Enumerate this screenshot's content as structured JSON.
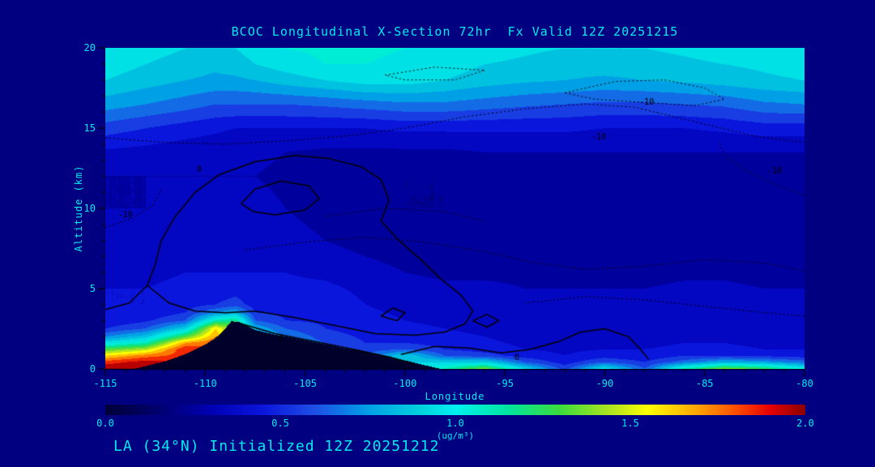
{
  "page": {
    "background": "#000080",
    "text_color": "#00ecec",
    "axis_color": "#000000"
  },
  "chart_data": {
    "type": "heatmap",
    "title": "BCOC Longitudinal X-Section 72hr  Fx Valid 12Z 20251215",
    "xlabel": "Longitude",
    "ylabel": "Altitude (km)",
    "footer": "LA (34°N) Initialized 12Z 20251212",
    "x_range": [
      -115,
      -80
    ],
    "y_range": [
      0,
      20
    ],
    "x_ticks": [
      -115,
      -110,
      -105,
      -100,
      -95,
      -90,
      -85,
      -80
    ],
    "y_ticks": [
      0,
      5,
      10,
      15,
      20
    ],
    "x_minor_step": 1,
    "y_minor_step": 1,
    "colorbar": {
      "min": 0,
      "max": 2,
      "tick_labels": [
        "0.0",
        "0.5",
        "1.0",
        "1.5",
        "2.0"
      ],
      "unit": "(ug/m³)",
      "band_step": 0.1
    },
    "colormap": [
      [
        0.0,
        "#000038"
      ],
      [
        0.15,
        "#00006e"
      ],
      [
        0.3,
        "#0000b4"
      ],
      [
        0.45,
        "#0b16dc"
      ],
      [
        0.6,
        "#1e50e6"
      ],
      [
        0.75,
        "#00a0e6"
      ],
      [
        0.9,
        "#00d2dc"
      ],
      [
        1.0,
        "#00f0f0"
      ],
      [
        1.15,
        "#00e6a0"
      ],
      [
        1.3,
        "#3cdc3c"
      ],
      [
        1.45,
        "#b4e61e"
      ],
      [
        1.55,
        "#ffff00"
      ],
      [
        1.7,
        "#ffa000"
      ],
      [
        1.8,
        "#ff5000"
      ],
      [
        1.9,
        "#e60000"
      ],
      [
        2.0,
        "#8c0000"
      ]
    ],
    "grid": {
      "lons": [
        -115,
        -113,
        -111,
        -109.5,
        -108.5,
        -107.5,
        -106,
        -104,
        -102,
        -100,
        -98,
        -96,
        -94,
        -92,
        -90,
        -88,
        -86,
        -84,
        -82,
        -80
      ],
      "alts": [
        0,
        0.4,
        0.8,
        1.2,
        1.6,
        2,
        2.5,
        3,
        3.5,
        4,
        5,
        6,
        8,
        10,
        12,
        13.5,
        15,
        16.5,
        18,
        19,
        20
      ],
      "values": [
        [
          2.0,
          2.0,
          1.9,
          1.8,
          1.3,
          0.85,
          0.7,
          0.6,
          0.6,
          0.9,
          1.1,
          1.35,
          0.9,
          0.55,
          0.95,
          0.6,
          1.1,
          1.35,
          1.25,
          1.0
        ],
        [
          1.85,
          1.95,
          1.9,
          1.8,
          1.3,
          0.85,
          0.7,
          0.6,
          0.6,
          0.9,
          0.9,
          0.9,
          0.6,
          0.45,
          0.6,
          0.5,
          0.65,
          0.8,
          0.75,
          0.65
        ],
        [
          1.6,
          1.75,
          1.85,
          1.8,
          1.3,
          0.85,
          0.7,
          0.6,
          0.6,
          0.9,
          0.6,
          0.55,
          0.45,
          0.4,
          0.45,
          0.42,
          0.5,
          0.5,
          0.48,
          0.45
        ],
        [
          1.3,
          1.45,
          1.9,
          1.8,
          1.3,
          0.85,
          0.7,
          0.6,
          0.55,
          0.6,
          0.5,
          0.45,
          0.4,
          0.38,
          0.4,
          0.4,
          0.42,
          0.42,
          0.4,
          0.4
        ],
        [
          0.95,
          1.1,
          1.7,
          1.8,
          1.3,
          0.85,
          0.7,
          0.6,
          0.5,
          0.5,
          0.45,
          0.42,
          0.38,
          0.36,
          0.38,
          0.38,
          0.4,
          0.4,
          0.38,
          0.38
        ],
        [
          0.7,
          0.85,
          1.3,
          1.7,
          1.3,
          0.85,
          0.7,
          0.55,
          0.48,
          0.45,
          0.42,
          0.4,
          0.36,
          0.35,
          0.36,
          0.36,
          0.38,
          0.38,
          0.36,
          0.36
        ],
        [
          0.5,
          0.6,
          0.9,
          1.6,
          1.3,
          0.8,
          0.6,
          0.5,
          0.45,
          0.42,
          0.4,
          0.38,
          0.35,
          0.34,
          0.35,
          0.35,
          0.36,
          0.36,
          0.35,
          0.35
        ],
        [
          0.42,
          0.48,
          0.6,
          1.1,
          1.2,
          0.6,
          0.5,
          0.48,
          0.45,
          0.4,
          0.38,
          0.36,
          0.34,
          0.33,
          0.34,
          0.34,
          0.35,
          0.35,
          0.34,
          0.34
        ],
        [
          0.4,
          0.42,
          0.5,
          0.7,
          0.8,
          0.5,
          0.48,
          0.45,
          0.42,
          0.38,
          0.36,
          0.35,
          0.33,
          0.32,
          0.33,
          0.33,
          0.34,
          0.34,
          0.33,
          0.33
        ],
        [
          0.4,
          0.4,
          0.45,
          0.5,
          0.55,
          0.45,
          0.45,
          0.45,
          0.4,
          0.36,
          0.35,
          0.34,
          0.32,
          0.31,
          0.32,
          0.32,
          0.33,
          0.33,
          0.32,
          0.32
        ],
        [
          0.4,
          0.4,
          0.42,
          0.42,
          0.45,
          0.42,
          0.42,
          0.42,
          0.38,
          0.34,
          0.32,
          0.32,
          0.3,
          0.3,
          0.3,
          0.3,
          0.31,
          0.31,
          0.3,
          0.3
        ],
        [
          0.38,
          0.38,
          0.4,
          0.4,
          0.4,
          0.4,
          0.4,
          0.38,
          0.34,
          0.3,
          0.28,
          0.28,
          0.28,
          0.28,
          0.28,
          0.28,
          0.29,
          0.29,
          0.28,
          0.28
        ],
        [
          0.34,
          0.34,
          0.36,
          0.36,
          0.36,
          0.35,
          0.34,
          0.3,
          0.26,
          0.24,
          0.22,
          0.22,
          0.24,
          0.25,
          0.26,
          0.26,
          0.26,
          0.26,
          0.26,
          0.26
        ],
        [
          0.3,
          0.3,
          0.32,
          0.33,
          0.34,
          0.33,
          0.3,
          0.26,
          0.22,
          0.2,
          0.2,
          0.2,
          0.22,
          0.24,
          0.25,
          0.25,
          0.25,
          0.25,
          0.25,
          0.25
        ],
        [
          0.3,
          0.3,
          0.3,
          0.3,
          0.3,
          0.3,
          0.28,
          0.25,
          0.22,
          0.2,
          0.2,
          0.22,
          0.24,
          0.25,
          0.25,
          0.25,
          0.26,
          0.26,
          0.26,
          0.26
        ],
        [
          0.38,
          0.36,
          0.34,
          0.33,
          0.32,
          0.32,
          0.3,
          0.28,
          0.28,
          0.28,
          0.28,
          0.3,
          0.3,
          0.3,
          0.3,
          0.3,
          0.3,
          0.3,
          0.3,
          0.3
        ],
        [
          0.55,
          0.5,
          0.45,
          0.42,
          0.4,
          0.4,
          0.4,
          0.4,
          0.4,
          0.42,
          0.42,
          0.42,
          0.42,
          0.42,
          0.4,
          0.4,
          0.4,
          0.42,
          0.45,
          0.45
        ],
        [
          0.75,
          0.7,
          0.65,
          0.6,
          0.6,
          0.6,
          0.6,
          0.62,
          0.65,
          0.68,
          0.68,
          0.65,
          0.62,
          0.6,
          0.58,
          0.58,
          0.6,
          0.62,
          0.68,
          0.7
        ],
        [
          0.9,
          0.85,
          0.8,
          0.78,
          0.78,
          0.8,
          0.85,
          0.9,
          0.95,
          0.95,
          0.9,
          0.85,
          0.82,
          0.8,
          0.78,
          0.8,
          0.82,
          0.85,
          0.88,
          0.9
        ],
        [
          0.95,
          0.9,
          0.85,
          0.82,
          0.85,
          0.9,
          0.95,
          1.0,
          1.0,
          0.98,
          0.95,
          0.9,
          0.88,
          0.85,
          0.85,
          0.86,
          0.88,
          0.9,
          0.92,
          0.95
        ],
        [
          0.98,
          0.95,
          0.9,
          0.88,
          0.9,
          0.95,
          1.0,
          1.02,
          1.02,
          1.0,
          0.98,
          0.95,
          0.92,
          0.9,
          0.9,
          0.9,
          0.92,
          0.95,
          0.95,
          0.98
        ]
      ]
    },
    "terrain": {
      "color": "#00002a",
      "lons": [
        -115,
        -113.5,
        -113,
        -112,
        -111,
        -110,
        -109.5,
        -109,
        -108.7,
        -108.3,
        -107.5,
        -106.5,
        -106,
        -105,
        -104,
        -103,
        -102,
        -101,
        -100,
        -99,
        -98.3,
        -98,
        -80
      ],
      "alts": [
        0,
        0,
        0.15,
        0.45,
        0.9,
        1.5,
        1.9,
        2.5,
        2.95,
        2.9,
        2.4,
        2.1,
        2.0,
        1.75,
        1.5,
        1.25,
        1.05,
        0.8,
        0.5,
        0.2,
        0,
        0,
        0
      ]
    },
    "contours": {
      "solid": {
        "level": "0",
        "color": "#000000",
        "paths": [
          [
            [
              -112.9,
              5.2
            ],
            [
              -112.5,
              6.5
            ],
            [
              -112.2,
              8
            ],
            [
              -111.5,
              9.5
            ],
            [
              -110.5,
              11
            ],
            [
              -109.3,
              12.1
            ],
            [
              -107.5,
              12.9
            ],
            [
              -105.5,
              13.3
            ],
            [
              -103.8,
              13.1
            ],
            [
              -102.2,
              12.6
            ],
            [
              -101.2,
              11.8
            ],
            [
              -100.8,
              10.5
            ],
            [
              -101.2,
              9.2
            ],
            [
              -100.3,
              8
            ],
            [
              -99.2,
              6.8
            ],
            [
              -98.2,
              5.6
            ],
            [
              -97.2,
              4.6
            ],
            [
              -96.6,
              3.6
            ],
            [
              -97.0,
              2.8
            ],
            [
              -98.0,
              2.3
            ],
            [
              -99.5,
              2.1
            ],
            [
              -101.5,
              2.2
            ],
            [
              -103.5,
              2.7
            ],
            [
              -105.5,
              3.2
            ],
            [
              -107.5,
              3.6
            ],
            [
              -109,
              3.5
            ],
            [
              -110.5,
              3.6
            ],
            [
              -111.8,
              4.1
            ],
            [
              -112.9,
              5.2
            ]
          ],
          [
            [
              -108.2,
              10.3
            ],
            [
              -107.5,
              11.2
            ],
            [
              -106.2,
              11.7
            ],
            [
              -104.8,
              11.4
            ],
            [
              -104.3,
              10.6
            ],
            [
              -105,
              9.9
            ],
            [
              -106.5,
              9.6
            ],
            [
              -107.6,
              9.8
            ],
            [
              -108.2,
              10.3
            ]
          ],
          [
            [
              -101.2,
              3.3
            ],
            [
              -100.6,
              3.8
            ],
            [
              -100.0,
              3.5
            ],
            [
              -100.4,
              3.0
            ],
            [
              -101.2,
              3.3
            ]
          ],
          [
            [
              -108.3,
              2.85
            ],
            [
              -106.5,
              2.2
            ],
            [
              -104.5,
              1.7
            ],
            [
              -102.5,
              1.2
            ],
            [
              -100.8,
              0.75
            ],
            [
              -99.5,
              0.3
            ]
          ],
          [
            [
              -100.2,
              0.9
            ],
            [
              -98.5,
              1.4
            ],
            [
              -96.8,
              1.3
            ],
            [
              -95.2,
              1.0
            ],
            [
              -93.8,
              1.2
            ],
            [
              -92.3,
              1.7
            ],
            [
              -91.2,
              2.3
            ],
            [
              -90.0,
              2.5
            ],
            [
              -88.8,
              2.0
            ],
            [
              -88.2,
              1.2
            ],
            [
              -87.8,
              0.6
            ]
          ],
          [
            [
              -115,
              3.7
            ],
            [
              -113.8,
              4.1
            ],
            [
              -112.9,
              5.2
            ]
          ],
          [
            [
              -96.6,
              3.0
            ],
            [
              -95.9,
              3.4
            ],
            [
              -95.3,
              3.0
            ],
            [
              -95.9,
              2.6
            ],
            [
              -96.6,
              3.0
            ]
          ]
        ],
        "labels": [
          {
            "text": "0",
            "lon": -110.3,
            "alt": 12.4
          },
          {
            "text": "0",
            "lon": -106.2,
            "alt": 1.9
          },
          {
            "text": "0",
            "lon": -94.4,
            "alt": 0.7
          }
        ]
      },
      "dotted": {
        "level": "-10",
        "color": "#000000",
        "paths": [
          [
            [
              -115,
              14.4
            ],
            [
              -112,
              14.1
            ],
            [
              -109,
              14.0
            ],
            [
              -106,
              14.2
            ],
            [
              -103,
              14.5
            ],
            [
              -100,
              15.0
            ],
            [
              -97,
              15.7
            ],
            [
              -94,
              16.2
            ],
            [
              -91,
              16.5
            ],
            [
              -88.5,
              16.3
            ],
            [
              -86.5,
              15.7
            ],
            [
              -84.5,
              15.1
            ],
            [
              -82.5,
              14.5
            ],
            [
              -80,
              14.1
            ]
          ],
          [
            [
              -92,
              17.2
            ],
            [
              -89.5,
              17.9
            ],
            [
              -87,
              18.0
            ],
            [
              -85,
              17.5
            ],
            [
              -84,
              16.8
            ],
            [
              -85.5,
              16.4
            ],
            [
              -88,
              16.6
            ],
            [
              -90.5,
              16.8
            ],
            [
              -92,
              17.2
            ]
          ],
          [
            [
              -80,
              10.8
            ],
            [
              -81.5,
              11.5
            ],
            [
              -83,
              12.4
            ],
            [
              -84,
              13.3
            ],
            [
              -84.3,
              14.2
            ]
          ],
          [
            [
              -115,
              8.8
            ],
            [
              -113.6,
              9.4
            ],
            [
              -112.6,
              10.2
            ],
            [
              -112.2,
              11.2
            ]
          ],
          [
            [
              -108,
              7.4
            ],
            [
              -105,
              7.9
            ],
            [
              -102,
              8.2
            ],
            [
              -99,
              7.9
            ],
            [
              -96,
              7.3
            ],
            [
              -93.5,
              6.6
            ],
            [
              -91,
              6.2
            ],
            [
              -88,
              6.4
            ],
            [
              -85,
              6.8
            ],
            [
              -82,
              6.6
            ],
            [
              -80,
              6.1
            ]
          ],
          [
            [
              -94,
              4.1
            ],
            [
              -91,
              4.5
            ],
            [
              -88,
              4.3
            ],
            [
              -85,
              3.9
            ],
            [
              -82,
              3.5
            ],
            [
              -80,
              3.3
            ]
          ],
          [
            [
              -101,
              18.3
            ],
            [
              -98.5,
              18.8
            ],
            [
              -96,
              18.6
            ],
            [
              -97.5,
              18.0
            ],
            [
              -100,
              18.0
            ],
            [
              -101,
              18.3
            ]
          ],
          [
            [
              -104,
              9.5
            ],
            [
              -101,
              10.0
            ],
            [
              -98,
              9.8
            ],
            [
              -96,
              9.2
            ]
          ]
        ],
        "labels": [
          {
            "text": "-10",
            "lon": -87.9,
            "alt": 16.6
          },
          {
            "text": "-10",
            "lon": -81.5,
            "alt": 12.3
          },
          {
            "text": "-10",
            "lon": -114.0,
            "alt": 9.6
          },
          {
            "text": "-10",
            "lon": -90.3,
            "alt": 14.4
          }
        ]
      }
    }
  }
}
